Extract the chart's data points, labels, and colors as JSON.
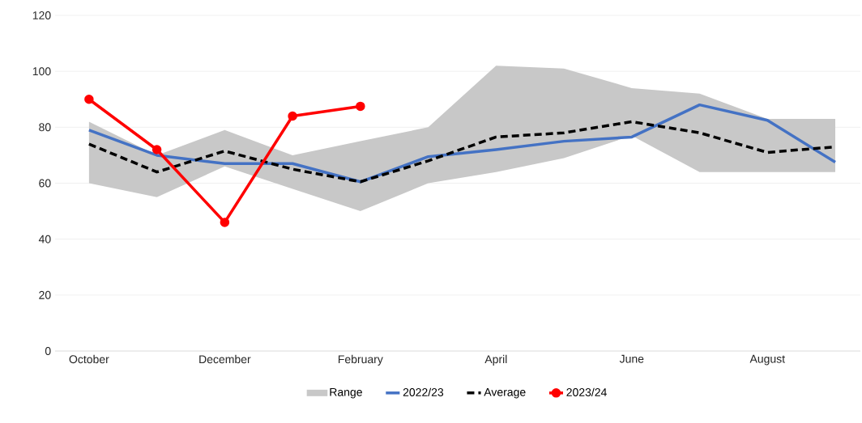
{
  "chart_data": {
    "type": "line",
    "categories": [
      "October",
      null,
      "December",
      null,
      "February",
      null,
      "April",
      null,
      "June",
      null,
      "August",
      null
    ],
    "ylim": [
      0,
      120
    ],
    "yticks": [
      0,
      20,
      40,
      60,
      80,
      100,
      120
    ],
    "grid": "y",
    "legend": "bottom",
    "series": [
      {
        "name": "Range",
        "type": "area",
        "color": "#c8c8c8",
        "values": [
          null,
          null,
          null,
          null,
          null,
          null,
          null,
          null,
          null,
          null,
          null,
          null
        ],
        "lower": [
          60,
          55,
          66,
          58,
          50,
          60,
          64,
          69,
          77,
          64,
          64,
          64
        ],
        "upper": [
          82,
          70,
          79,
          70,
          75,
          80,
          102,
          101,
          94,
          92,
          83,
          83
        ]
      },
      {
        "name": "2022/23",
        "color": "#4472c4",
        "line_style": "solid",
        "marker": "none",
        "values": [
          79,
          70,
          67,
          67,
          60.5,
          69.5,
          72,
          75,
          76.5,
          88,
          82.5,
          67.5
        ]
      },
      {
        "name": "Average",
        "color": "#000000",
        "line_style": "dashed",
        "marker": "none",
        "values": [
          74,
          64,
          71.5,
          65,
          60.5,
          68,
          76.5,
          78,
          82,
          78,
          71,
          73
        ]
      },
      {
        "name": "2023/24",
        "color": "#ff0000",
        "line_style": "solid",
        "marker": "circle",
        "values": [
          90,
          72,
          46,
          84,
          87.5,
          null,
          null,
          null,
          null,
          null,
          null,
          null
        ]
      }
    ]
  }
}
